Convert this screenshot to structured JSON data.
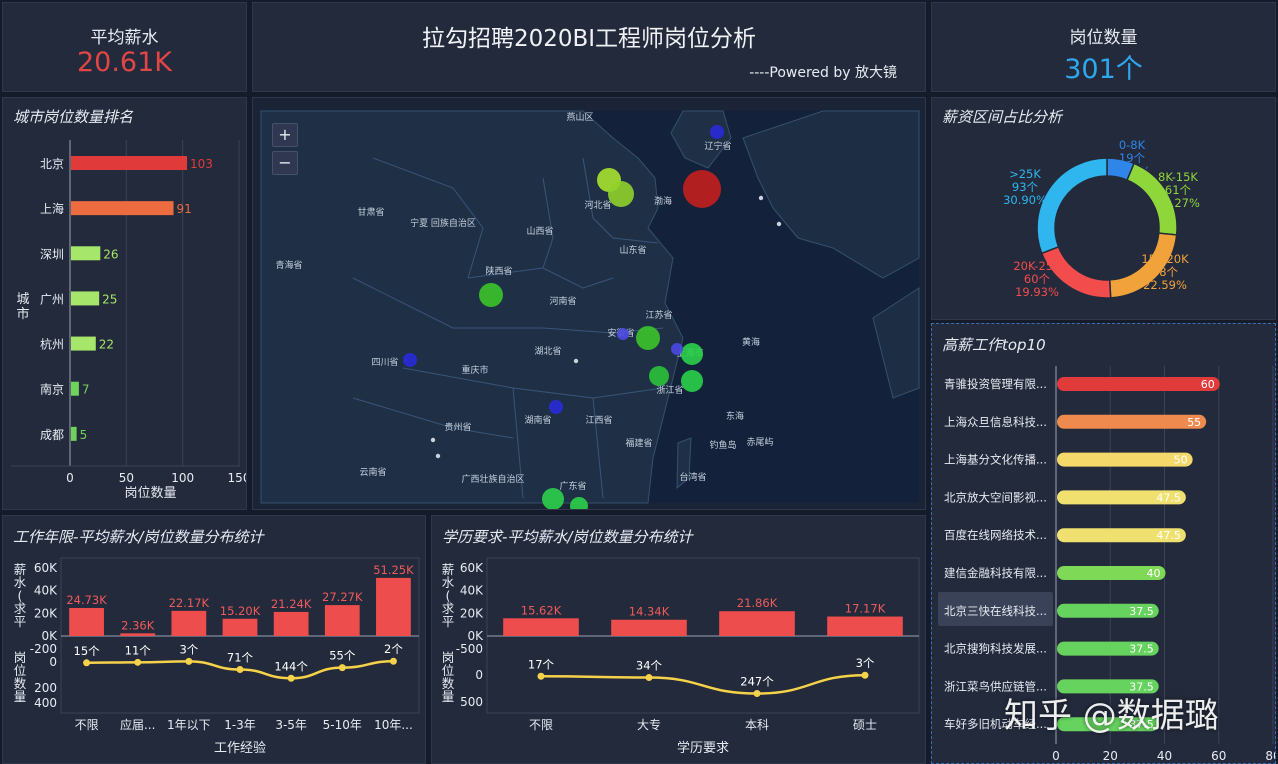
{
  "header": {
    "title": "拉勾招聘2020BI工程师岗位分析",
    "powered": "----Powered by  放大镜",
    "avg_salary_label": "平均薪水",
    "avg_salary_value": "20.61K",
    "job_count_label": "岗位数量",
    "job_count_value": "301个"
  },
  "colors": {
    "red": "#e24545",
    "blue": "#2ea7ee",
    "yellow": "#f5d24a",
    "green": "#7ed957",
    "bg": "#161b29",
    "panel": "#232a3b"
  },
  "map": {
    "zoom_in": "+",
    "zoom_out": "−",
    "labels": [
      "燕山区",
      "辽宁省",
      "甘肃省",
      "宁夏 回族自治区",
      "山西省",
      "河北省",
      "山东省",
      "陕西省",
      "河南省",
      "江苏省",
      "青海省",
      "安徽省",
      "上海市",
      "湖北省",
      "四川省",
      "重庆市",
      "浙江省",
      "湖南省",
      "江西省",
      "贵州省",
      "福建省",
      "云南省",
      "广西壮族自治区",
      "广东省",
      "台湾省",
      "黄海",
      "渤海",
      "东海",
      "钓鱼岛",
      "赤尾屿"
    ]
  },
  "city_rank": {
    "title": "城市岗位数量排名",
    "y_axis_label": "城市",
    "x_axis_label": "岗位数量",
    "chart_data": {
      "type": "bar",
      "orientation": "horizontal",
      "categories": [
        "北京",
        "上海",
        "深圳",
        "广州",
        "杭州",
        "南京",
        "成都"
      ],
      "values": [
        103,
        91,
        26,
        25,
        22,
        7,
        5
      ],
      "xlabel": "岗位数量",
      "ylabel": "城市",
      "xlim": [
        0,
        150
      ],
      "xticks": [
        "0",
        "50",
        "100",
        "150"
      ],
      "colors": [
        "#e03a3a",
        "#ec6b3f",
        "#a6e66a",
        "#a6e66a",
        "#a6e66a",
        "#6fd35b",
        "#6fd35b"
      ]
    }
  },
  "salary_pie": {
    "title": "薪资区间占比分析",
    "chart_data": {
      "type": "pie",
      "slices": [
        {
          "label": "0-8K",
          "count": "19个",
          "pct": "6.31%",
          "value": 6.31,
          "color": "#2f86e8"
        },
        {
          "label": "8K-15K",
          "count": "61个",
          "pct": "20.27%",
          "value": 20.27,
          "color": "#8fd63a"
        },
        {
          "label": "15K-20K",
          "count": "68个",
          "pct": "22.59%",
          "value": 22.59,
          "color": "#f2a23a"
        },
        {
          "label": "20K-25K",
          "count": "60个",
          "pct": "19.93%",
          "value": 19.93,
          "color": "#f24c4c"
        },
        {
          "label": ">25K",
          "count": "93个",
          "pct": "30.90%",
          "value": 30.9,
          "color": "#2fb6ee"
        }
      ]
    }
  },
  "top10": {
    "title": "高薪工作top10",
    "chart_data": {
      "type": "bar",
      "orientation": "horizontal",
      "categories": [
        "青骓投资管理有限...",
        "上海众旦信息科技...",
        "上海基分文化传播...",
        "北京放大空间影视...",
        "百度在线网络技术...",
        "建信金融科技有限...",
        "北京三快在线科技...",
        "北京搜狗科技发展...",
        "浙江菜鸟供应链管...",
        "车好多旧机动车经..."
      ],
      "values": [
        60,
        55,
        50,
        47.5,
        47.5,
        40,
        37.5,
        37.5,
        37.5,
        37.5
      ],
      "value_labels": [
        "60",
        "55",
        "50",
        "47.5",
        "47.5",
        "40",
        "37.5",
        "37.5",
        "37.5",
        "37.5"
      ],
      "xlim": [
        0,
        80
      ],
      "xticks": [
        "0",
        "20",
        "40",
        "60",
        "80"
      ],
      "colors": [
        "#e03a3a",
        "#ee8a4e",
        "#f5d86a",
        "#f0e070",
        "#f0e070",
        "#7ed957",
        "#66d35e",
        "#66d35e",
        "#66d35e",
        "#66d35e"
      ]
    }
  },
  "experience": {
    "title": "工作年限-平均薪水/岗位数量分布统计",
    "y1_label": "薪水(求平",
    "y2_label": "岗位数量",
    "xlabel": "工作经验",
    "chart_data": {
      "type": "bar",
      "categories": [
        "不限",
        "应届...",
        "1年以下",
        "1-3年",
        "3-5年",
        "5-10年",
        "10年..."
      ],
      "series": [
        {
          "name": "薪水",
          "values": [
            24.73,
            2.36,
            22.17,
            15.2,
            21.24,
            27.27,
            51.25
          ],
          "labels": [
            "24.73K",
            "2.36K",
            "22.17K",
            "15.20K",
            "21.24K",
            "27.27K",
            "51.25K"
          ]
        },
        {
          "name": "岗位数量",
          "values": [
            15,
            11,
            3,
            71,
            144,
            55,
            2
          ],
          "labels": [
            "15个",
            "11个",
            "3个",
            "71个",
            "144个",
            "55个",
            "2个"
          ]
        }
      ],
      "y1ticks": [
        "60K",
        "40K",
        "20K",
        "0K"
      ],
      "y2ticks": [
        "-200",
        "0",
        "200",
        "400"
      ]
    }
  },
  "education": {
    "title": "学历要求-平均薪水/岗位数量分布统计",
    "y1_label": "薪水(求平",
    "y2_label": "岗位数量",
    "xlabel": "学历要求",
    "chart_data": {
      "type": "bar",
      "categories": [
        "不限",
        "大专",
        "本科",
        "硕士"
      ],
      "series": [
        {
          "name": "薪水",
          "values": [
            15.62,
            14.34,
            21.86,
            17.17
          ],
          "labels": [
            "15.62K",
            "14.34K",
            "21.86K",
            "17.17K"
          ]
        },
        {
          "name": "岗位数量",
          "values": [
            17,
            34,
            247,
            3
          ],
          "labels": [
            "17个",
            "34个",
            "247个",
            "3个"
          ]
        }
      ],
      "y1ticks": [
        "60K",
        "40K",
        "20K",
        "0K"
      ],
      "y2ticks": [
        "-500",
        "0",
        "500"
      ]
    }
  },
  "watermark": "知乎 @数据璐"
}
